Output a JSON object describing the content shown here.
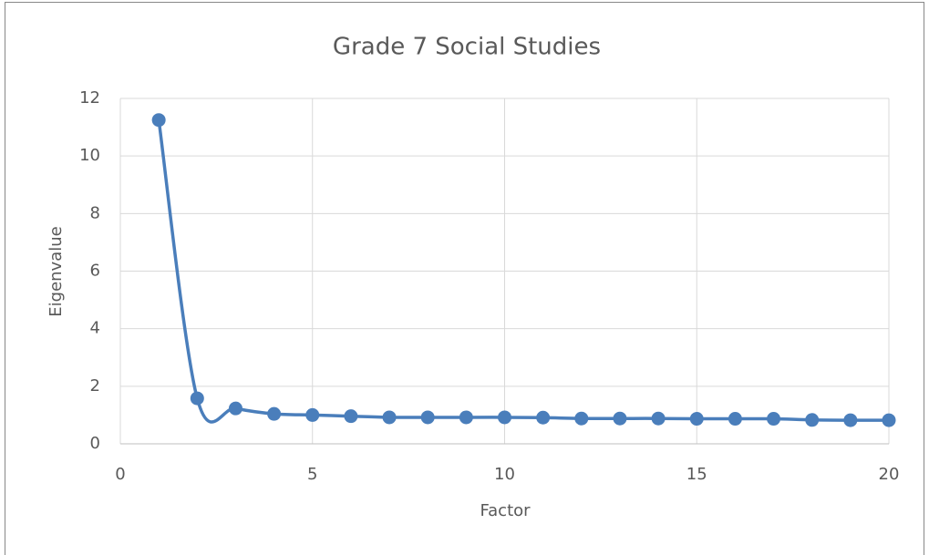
{
  "chart_data": {
    "type": "line",
    "title": "Grade 7 Social Studies",
    "x_label": "Factor",
    "y_label": "Eigenvalue",
    "x": [
      1,
      2,
      3,
      4,
      5,
      6,
      7,
      8,
      9,
      10,
      11,
      12,
      13,
      14,
      15,
      16,
      17,
      18,
      19,
      20
    ],
    "values": [
      11.25,
      1.58,
      1.23,
      1.04,
      1.0,
      0.96,
      0.92,
      0.92,
      0.92,
      0.92,
      0.91,
      0.88,
      0.88,
      0.88,
      0.87,
      0.87,
      0.87,
      0.83,
      0.82,
      0.82
    ],
    "color": "#4a7ebb",
    "xlim": [
      0,
      20
    ],
    "xticks": [
      0,
      5,
      10,
      15,
      20
    ],
    "ylim": [
      0,
      12
    ],
    "yticks": [
      0,
      2,
      4,
      6,
      8,
      10,
      12
    ],
    "grid": true,
    "smooth": true
  }
}
